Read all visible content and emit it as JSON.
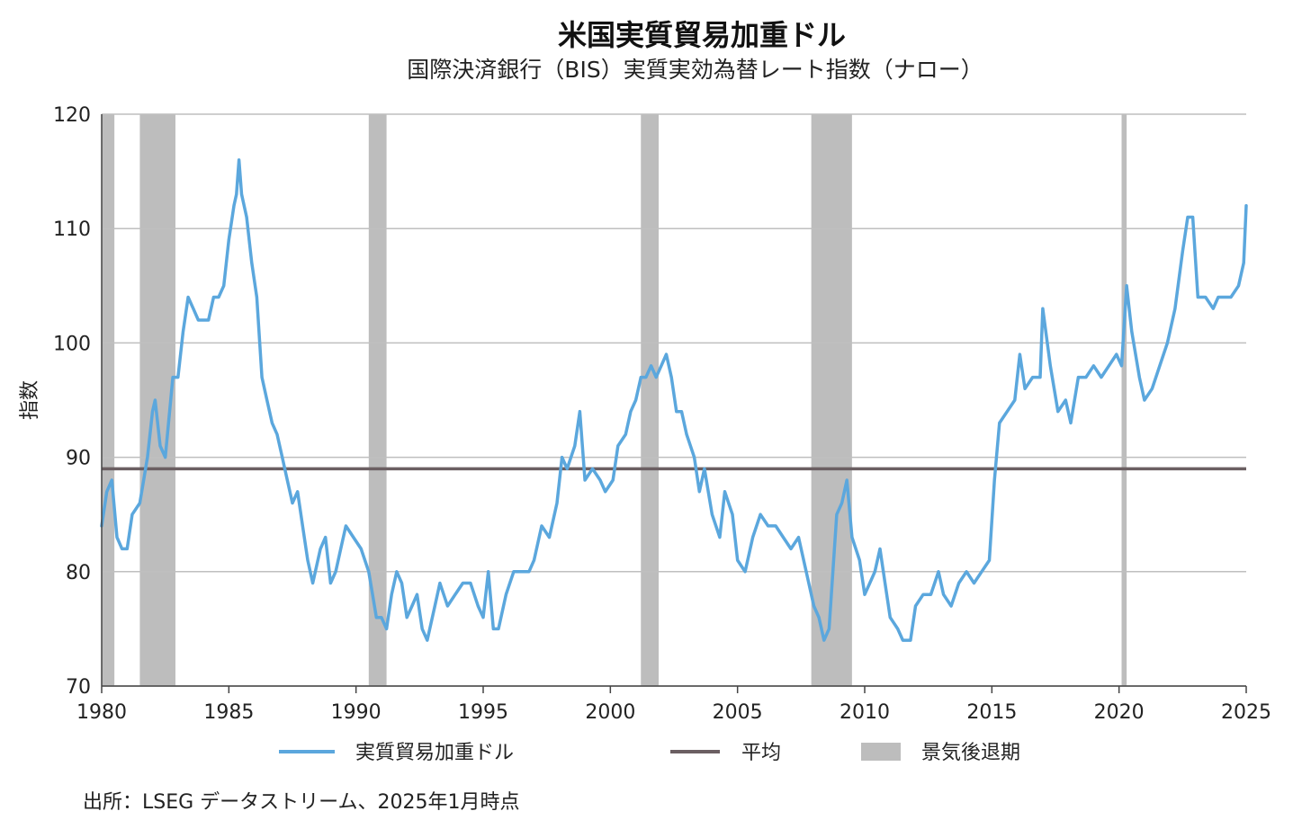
{
  "chart_data": {
    "type": "line",
    "title": "米国実質貿易加重ドル",
    "subtitle": "国際決済銀行（BIS）実質実効為替レート指数（ナロー）",
    "ylabel": "指数",
    "xlabel": "",
    "xlim": [
      1980,
      2025
    ],
    "ylim": [
      70,
      120
    ],
    "x_ticks": [
      "1980",
      "1985",
      "1990",
      "1995",
      "2000",
      "2005",
      "2010",
      "2015",
      "2020",
      "2025"
    ],
    "y_ticks": [
      "70",
      "80",
      "90",
      "100",
      "110",
      "120"
    ],
    "grid": "horizontal",
    "legend_position": "bottom",
    "series": [
      {
        "name": "実質貿易加重ドル",
        "color": "#5BA7DD",
        "points": [
          [
            1980.0,
            84
          ],
          [
            1980.2,
            87
          ],
          [
            1980.4,
            88
          ],
          [
            1980.6,
            83
          ],
          [
            1980.8,
            82
          ],
          [
            1981.0,
            82
          ],
          [
            1981.2,
            85
          ],
          [
            1981.5,
            86
          ],
          [
            1981.8,
            90
          ],
          [
            1982.0,
            94
          ],
          [
            1982.1,
            95
          ],
          [
            1982.3,
            91
          ],
          [
            1982.5,
            90
          ],
          [
            1982.8,
            97
          ],
          [
            1983.0,
            97
          ],
          [
            1983.2,
            101
          ],
          [
            1983.4,
            104
          ],
          [
            1983.6,
            103
          ],
          [
            1983.8,
            102
          ],
          [
            1984.0,
            102
          ],
          [
            1984.2,
            102
          ],
          [
            1984.4,
            104
          ],
          [
            1984.6,
            104
          ],
          [
            1984.8,
            105
          ],
          [
            1985.0,
            109
          ],
          [
            1985.2,
            112
          ],
          [
            1985.3,
            113
          ],
          [
            1985.4,
            116
          ],
          [
            1985.5,
            113
          ],
          [
            1985.7,
            111
          ],
          [
            1985.9,
            107
          ],
          [
            1986.1,
            104
          ],
          [
            1986.3,
            97
          ],
          [
            1986.5,
            95
          ],
          [
            1986.7,
            93
          ],
          [
            1986.9,
            92
          ],
          [
            1987.1,
            90
          ],
          [
            1987.3,
            88
          ],
          [
            1987.5,
            86
          ],
          [
            1987.7,
            87
          ],
          [
            1987.9,
            84
          ],
          [
            1988.1,
            81
          ],
          [
            1988.3,
            79
          ],
          [
            1988.6,
            82
          ],
          [
            1988.8,
            83
          ],
          [
            1989.0,
            79
          ],
          [
            1989.2,
            80
          ],
          [
            1989.4,
            82
          ],
          [
            1989.6,
            84
          ],
          [
            1989.9,
            83
          ],
          [
            1990.2,
            82
          ],
          [
            1990.5,
            80
          ],
          [
            1990.8,
            76
          ],
          [
            1991.0,
            76
          ],
          [
            1991.2,
            75
          ],
          [
            1991.4,
            78
          ],
          [
            1991.6,
            80
          ],
          [
            1991.8,
            79
          ],
          [
            1992.0,
            76
          ],
          [
            1992.2,
            77
          ],
          [
            1992.4,
            78
          ],
          [
            1992.6,
            75
          ],
          [
            1992.8,
            74
          ],
          [
            1993.1,
            77
          ],
          [
            1993.3,
            79
          ],
          [
            1993.6,
            77
          ],
          [
            1993.9,
            78
          ],
          [
            1994.2,
            79
          ],
          [
            1994.5,
            79
          ],
          [
            1994.8,
            77
          ],
          [
            1995.0,
            76
          ],
          [
            1995.2,
            80
          ],
          [
            1995.4,
            75
          ],
          [
            1995.6,
            75
          ],
          [
            1995.9,
            78
          ],
          [
            1996.2,
            80
          ],
          [
            1996.5,
            80
          ],
          [
            1996.8,
            80
          ],
          [
            1997.0,
            81
          ],
          [
            1997.3,
            84
          ],
          [
            1997.6,
            83
          ],
          [
            1997.9,
            86
          ],
          [
            1998.1,
            90
          ],
          [
            1998.3,
            89
          ],
          [
            1998.6,
            91
          ],
          [
            1998.8,
            94
          ],
          [
            1999.0,
            88
          ],
          [
            1999.3,
            89
          ],
          [
            1999.6,
            88
          ],
          [
            1999.8,
            87
          ],
          [
            2000.1,
            88
          ],
          [
            2000.3,
            91
          ],
          [
            2000.6,
            92
          ],
          [
            2000.8,
            94
          ],
          [
            2001.0,
            95
          ],
          [
            2001.2,
            97
          ],
          [
            2001.4,
            97
          ],
          [
            2001.6,
            98
          ],
          [
            2001.8,
            97
          ],
          [
            2002.0,
            98
          ],
          [
            2002.2,
            99
          ],
          [
            2002.4,
            97
          ],
          [
            2002.6,
            94
          ],
          [
            2002.8,
            94
          ],
          [
            2003.0,
            92
          ],
          [
            2003.3,
            90
          ],
          [
            2003.5,
            87
          ],
          [
            2003.7,
            89
          ],
          [
            2004.0,
            85
          ],
          [
            2004.3,
            83
          ],
          [
            2004.5,
            87
          ],
          [
            2004.8,
            85
          ],
          [
            2005.0,
            81
          ],
          [
            2005.3,
            80
          ],
          [
            2005.6,
            83
          ],
          [
            2005.9,
            85
          ],
          [
            2006.2,
            84
          ],
          [
            2006.5,
            84
          ],
          [
            2006.8,
            83
          ],
          [
            2007.1,
            82
          ],
          [
            2007.4,
            83
          ],
          [
            2007.7,
            80
          ],
          [
            2008.0,
            77
          ],
          [
            2008.2,
            76
          ],
          [
            2008.4,
            74
          ],
          [
            2008.6,
            75
          ],
          [
            2008.9,
            85
          ],
          [
            2009.1,
            86
          ],
          [
            2009.3,
            88
          ],
          [
            2009.5,
            83
          ],
          [
            2009.8,
            81
          ],
          [
            2010.0,
            78
          ],
          [
            2010.2,
            79
          ],
          [
            2010.4,
            80
          ],
          [
            2010.6,
            82
          ],
          [
            2010.8,
            79
          ],
          [
            2011.0,
            76
          ],
          [
            2011.3,
            75
          ],
          [
            2011.5,
            74
          ],
          [
            2011.8,
            74
          ],
          [
            2012.0,
            77
          ],
          [
            2012.3,
            78
          ],
          [
            2012.6,
            78
          ],
          [
            2012.9,
            80
          ],
          [
            2013.1,
            78
          ],
          [
            2013.4,
            77
          ],
          [
            2013.7,
            79
          ],
          [
            2014.0,
            80
          ],
          [
            2014.3,
            79
          ],
          [
            2014.6,
            80
          ],
          [
            2014.9,
            81
          ],
          [
            2015.1,
            88
          ],
          [
            2015.3,
            93
          ],
          [
            2015.6,
            94
          ],
          [
            2015.9,
            95
          ],
          [
            2016.1,
            99
          ],
          [
            2016.3,
            96
          ],
          [
            2016.6,
            97
          ],
          [
            2016.9,
            97
          ],
          [
            2017.0,
            103
          ],
          [
            2017.3,
            98
          ],
          [
            2017.6,
            94
          ],
          [
            2017.9,
            95
          ],
          [
            2018.1,
            93
          ],
          [
            2018.4,
            97
          ],
          [
            2018.7,
            97
          ],
          [
            2019.0,
            98
          ],
          [
            2019.3,
            97
          ],
          [
            2019.6,
            98
          ],
          [
            2019.9,
            99
          ],
          [
            2020.1,
            98
          ],
          [
            2020.3,
            105
          ],
          [
            2020.5,
            101
          ],
          [
            2020.8,
            97
          ],
          [
            2021.0,
            95
          ],
          [
            2021.3,
            96
          ],
          [
            2021.6,
            98
          ],
          [
            2021.9,
            100
          ],
          [
            2022.2,
            103
          ],
          [
            2022.5,
            108
          ],
          [
            2022.7,
            111
          ],
          [
            2022.9,
            111
          ],
          [
            2023.1,
            104
          ],
          [
            2023.4,
            104
          ],
          [
            2023.7,
            103
          ],
          [
            2023.9,
            104
          ],
          [
            2024.1,
            104
          ],
          [
            2024.4,
            104
          ],
          [
            2024.7,
            105
          ],
          [
            2024.9,
            107
          ],
          [
            2025.0,
            112
          ]
        ]
      },
      {
        "name": "平均",
        "color": "#6B5F62",
        "value": 89
      }
    ],
    "recessions_label": "景気後退期",
    "recessions_color": "#BDBDBD",
    "recessions": [
      [
        1980.0,
        1980.5
      ],
      [
        1981.5,
        1982.9
      ],
      [
        1990.5,
        1991.2
      ],
      [
        2001.2,
        2001.9
      ],
      [
        2007.9,
        2009.5
      ],
      [
        2020.1,
        2020.3
      ]
    ]
  },
  "source": "出所：LSEG データストリーム、2025年1月時点"
}
